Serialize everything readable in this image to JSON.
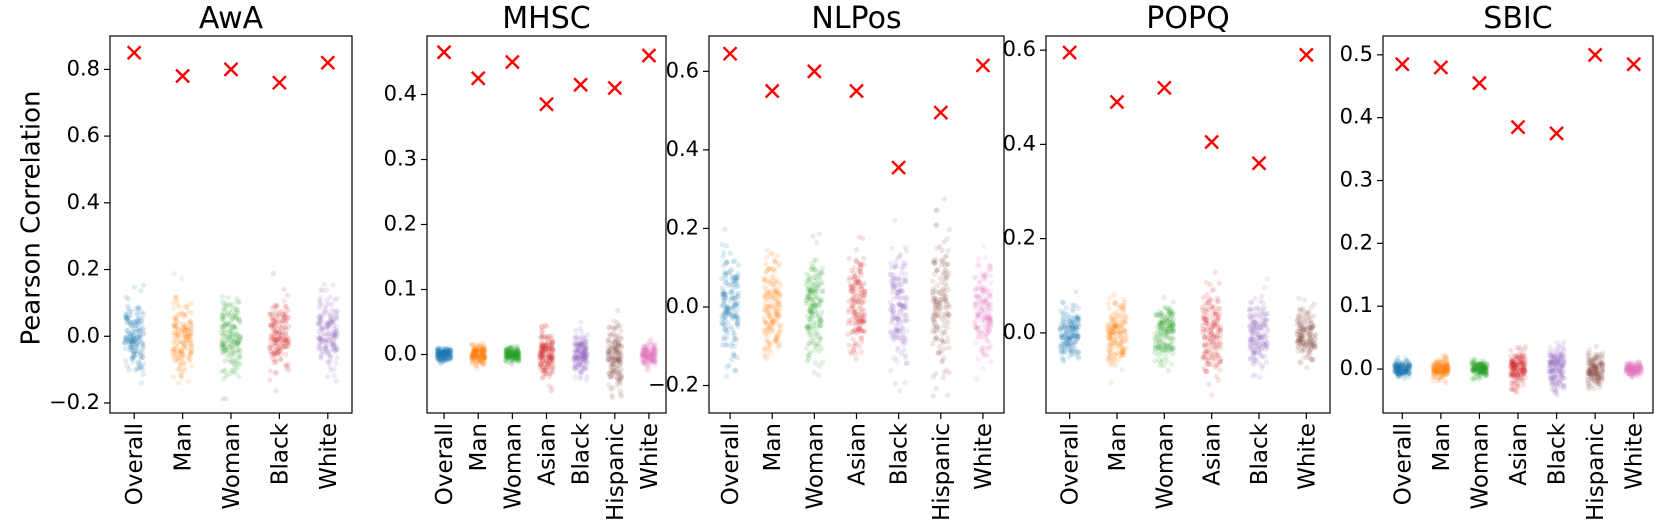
{
  "chart_data": {
    "type": "scatter",
    "ylabel": "Pearson Correlation",
    "series_colors": {
      "Overall": "#1f77b4",
      "Man": "#ff7f0e",
      "Woman": "#2ca02c",
      "Asian": "#d62728",
      "Black": "#9467bd",
      "Hispanic": "#8c564b",
      "White": "#e377c2"
    },
    "marker_color": "#ff0000",
    "panels": [
      {
        "title": "AwA",
        "categories": [
          "Overall",
          "Man",
          "Woman",
          "Black",
          "White"
        ],
        "colors": [
          "#1f77b4",
          "#ff7f0e",
          "#2ca02c",
          "#d62728",
          "#9467bd"
        ],
        "observed": [
          0.85,
          0.78,
          0.8,
          0.76,
          0.82
        ],
        "null_spread": [
          0.15,
          0.15,
          0.15,
          0.15,
          0.15
        ],
        "ylim": [
          -0.23,
          0.9
        ],
        "yticks": [
          -0.2,
          0.0,
          0.2,
          0.4,
          0.6,
          0.8
        ],
        "ytick_labels": [
          "−0.2",
          "0.0",
          "0.2",
          "0.4",
          "0.6",
          "0.8"
        ]
      },
      {
        "title": "MHSC",
        "categories": [
          "Overall",
          "Man",
          "Woman",
          "Asian",
          "Black",
          "Hispanic",
          "White"
        ],
        "colors": [
          "#1f77b4",
          "#ff7f0e",
          "#2ca02c",
          "#d62728",
          "#9467bd",
          "#8c564b",
          "#e377c2"
        ],
        "observed": [
          0.465,
          0.425,
          0.45,
          0.385,
          0.415,
          0.41,
          0.46
        ],
        "null_spread": [
          0.015,
          0.02,
          0.015,
          0.045,
          0.04,
          0.065,
          0.02
        ],
        "ylim": [
          -0.09,
          0.49
        ],
        "yticks": [
          0.0,
          0.1,
          0.2,
          0.3,
          0.4
        ],
        "ytick_labels": [
          "0.0",
          "0.1",
          "0.2",
          "0.3",
          "0.4"
        ]
      },
      {
        "title": "NLPos",
        "categories": [
          "Overall",
          "Man",
          "Woman",
          "Asian",
          "Black",
          "Hispanic",
          "White"
        ],
        "colors": [
          "#1f77b4",
          "#ff7f0e",
          "#2ca02c",
          "#d62728",
          "#9467bd",
          "#8c564b",
          "#e377c2"
        ],
        "observed": [
          0.645,
          0.55,
          0.6,
          0.55,
          0.355,
          0.495,
          0.615
        ],
        "null_spread": [
          0.18,
          0.17,
          0.17,
          0.18,
          0.21,
          0.22,
          0.16
        ],
        "ylim": [
          -0.27,
          0.69
        ],
        "yticks": [
          -0.2,
          0.0,
          0.2,
          0.4,
          0.6
        ],
        "ytick_labels": [
          "−0.2",
          "0.0",
          "0.2",
          "0.4",
          "0.6"
        ]
      },
      {
        "title": "POPQ",
        "categories": [
          "Overall",
          "Man",
          "Woman",
          "Asian",
          "Black",
          "White"
        ],
        "colors": [
          "#1f77b4",
          "#ff7f0e",
          "#2ca02c",
          "#d62728",
          "#9467bd",
          "#8c564b"
        ],
        "observed": [
          0.595,
          0.49,
          0.52,
          0.405,
          0.36,
          0.59
        ],
        "null_spread": [
          0.07,
          0.09,
          0.08,
          0.12,
          0.11,
          0.07
        ],
        "ylim": [
          -0.17,
          0.63
        ],
        "yticks": [
          0.0,
          0.2,
          0.4,
          0.6
        ],
        "ytick_labels": [
          "0.0",
          "0.2",
          "0.4",
          "0.6"
        ]
      },
      {
        "title": "SBIC",
        "categories": [
          "Overall",
          "Man",
          "Woman",
          "Asian",
          "Black",
          "Hispanic",
          "White"
        ],
        "colors": [
          "#1f77b4",
          "#ff7f0e",
          "#2ca02c",
          "#d62728",
          "#9467bd",
          "#8c564b",
          "#e377c2"
        ],
        "observed": [
          0.485,
          0.48,
          0.455,
          0.385,
          0.375,
          0.5,
          0.485
        ],
        "null_spread": [
          0.015,
          0.02,
          0.015,
          0.04,
          0.045,
          0.035,
          0.015
        ],
        "ylim": [
          -0.07,
          0.53
        ],
        "yticks": [
          0.0,
          0.1,
          0.2,
          0.3,
          0.4,
          0.5
        ],
        "ytick_labels": [
          "0.0",
          "0.1",
          "0.2",
          "0.3",
          "0.4",
          "0.5"
        ]
      }
    ]
  }
}
